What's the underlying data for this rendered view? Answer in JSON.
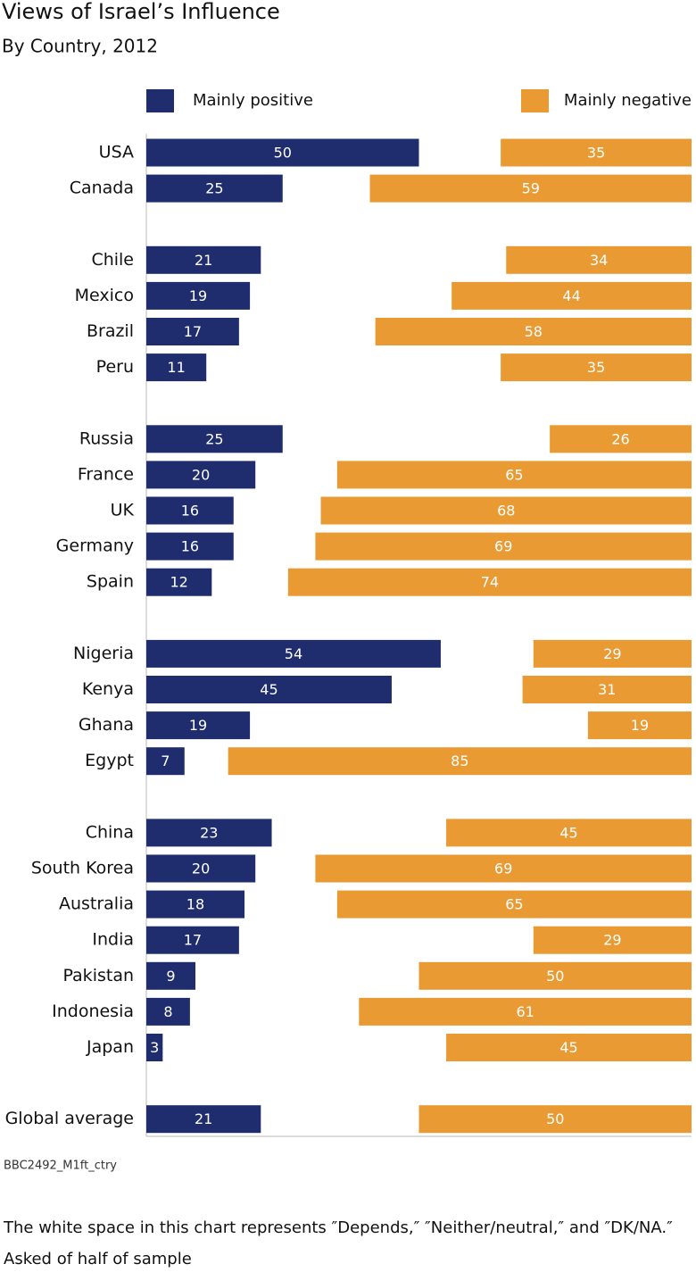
{
  "chart_data": {
    "type": "diverging-bar",
    "title": "Views of Israel’s Influence",
    "subtitle": "By Country, 2012",
    "categories": [
      "USA",
      "Canada",
      null,
      "Chile",
      "Mexico",
      "Brazil",
      "Peru",
      null,
      "Russia",
      "France",
      "UK",
      "Germany",
      "Spain",
      null,
      "Nigeria",
      "Kenya",
      "Ghana",
      "Egypt",
      null,
      "China",
      "South Korea",
      "Australia",
      "India",
      "Pakistan",
      "Indonesia",
      "Japan",
      null,
      "Global average"
    ],
    "series": [
      {
        "name": "Mainly positive",
        "color": "#1f2d6e",
        "side": "left",
        "values": [
          50,
          25,
          null,
          21,
          19,
          17,
          11,
          null,
          25,
          20,
          16,
          16,
          12,
          null,
          54,
          45,
          19,
          7,
          null,
          23,
          20,
          18,
          17,
          9,
          8,
          3,
          null,
          21
        ]
      },
      {
        "name": "Mainly negative",
        "color": "#e99a33",
        "side": "right",
        "values": [
          35,
          59,
          null,
          34,
          44,
          58,
          35,
          null,
          26,
          65,
          68,
          69,
          74,
          null,
          29,
          31,
          19,
          85,
          null,
          45,
          69,
          65,
          29,
          50,
          61,
          45,
          null,
          50
        ]
      }
    ],
    "xlim": [
      0,
      100
    ],
    "source": "BBC2492_M1ft_ctry",
    "notes": [
      "The white space in this chart represents ″Depends,″ ″Neither/neutral,″ and ″DK/NA.″",
      "Asked of half of sample"
    ]
  }
}
